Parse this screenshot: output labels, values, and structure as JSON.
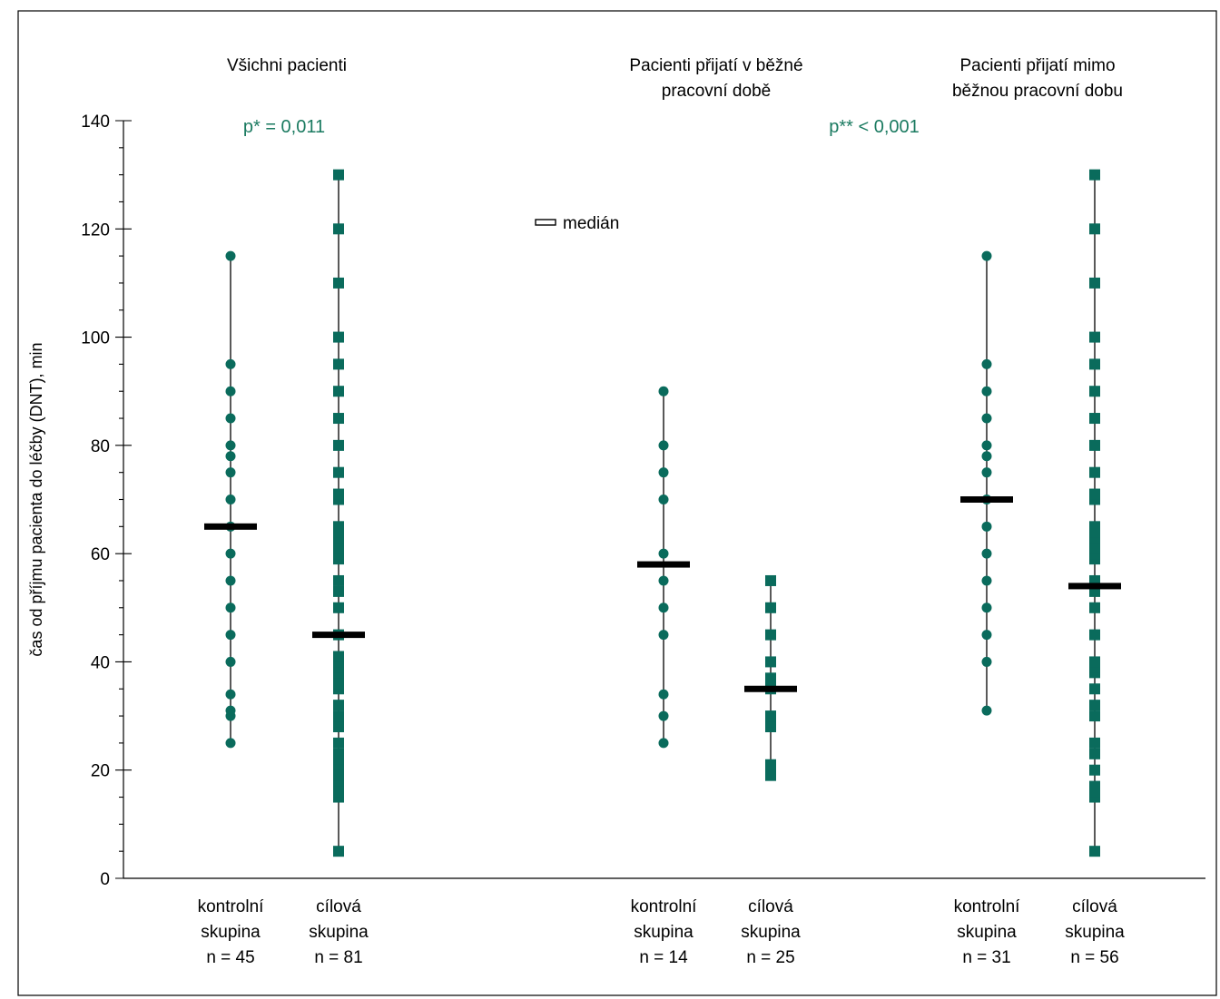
{
  "chart_data": {
    "type": "scatter",
    "title": "",
    "ylabel": "čas od příjmu pacienta do léčby (DNT), min",
    "ylim": [
      0,
      140
    ],
    "yticks": [
      0,
      20,
      40,
      60,
      80,
      100,
      120,
      140
    ],
    "legend": {
      "label": "medián",
      "placement": "top-center"
    },
    "colors": {
      "marker": "#0a6b5c",
      "median": "#000000",
      "annotation": "#1a7a60",
      "axis": "#000000"
    },
    "panels": [
      {
        "title_lines": [
          "Všichni pacienti"
        ]
      },
      {
        "title_lines": [
          "Pacienti přijatí v běžné",
          "pracovní době"
        ]
      },
      {
        "title_lines": [
          "Pacienti přijatí mimo",
          "běžnou pracovní dobu"
        ]
      }
    ],
    "annotations": [
      {
        "text": "p* = 0,011",
        "panel": 0
      },
      {
        "text": "p** < 0,001",
        "panel": 1
      }
    ],
    "series": [
      {
        "panel": 0,
        "marker": "circle",
        "labels": [
          "kontrolní",
          "skupina",
          "n = 45"
        ],
        "median": 65,
        "values": [
          25,
          30,
          31,
          34,
          40,
          45,
          50,
          55,
          60,
          65,
          70,
          75,
          78,
          80,
          85,
          90,
          95,
          115
        ]
      },
      {
        "panel": 0,
        "marker": "square",
        "labels": [
          "cílová",
          "skupina",
          "n = 81"
        ],
        "median": 45,
        "values": [
          5,
          15,
          16,
          17,
          18,
          19,
          20,
          21,
          22,
          23,
          25,
          28,
          29,
          30,
          32,
          35,
          36,
          37,
          38,
          39,
          40,
          41,
          45,
          50,
          53,
          55,
          59,
          60,
          61,
          62,
          63,
          64,
          65,
          70,
          71,
          75,
          80,
          85,
          90,
          95,
          100,
          110,
          120,
          130
        ]
      },
      {
        "panel": 1,
        "marker": "circle",
        "labels": [
          "kontrolní",
          "skupina",
          "n = 14"
        ],
        "median": 58,
        "values": [
          25,
          30,
          34,
          45,
          50,
          55,
          60,
          70,
          75,
          80,
          90
        ]
      },
      {
        "panel": 1,
        "marker": "square",
        "labels": [
          "cílová",
          "skupina",
          "n = 25"
        ],
        "median": 35,
        "values": [
          19,
          20,
          21,
          28,
          29,
          30,
          35,
          36,
          37,
          40,
          45,
          50,
          55
        ]
      },
      {
        "panel": 2,
        "marker": "circle",
        "labels": [
          "kontrolní",
          "skupina",
          "n = 31"
        ],
        "median": 70,
        "values": [
          31,
          40,
          45,
          50,
          55,
          60,
          65,
          70,
          75,
          78,
          80,
          85,
          90,
          95,
          115
        ]
      },
      {
        "panel": 2,
        "marker": "square",
        "labels": [
          "cílová",
          "skupina",
          "n = 56"
        ],
        "median": 54,
        "values": [
          5,
          15,
          16,
          17,
          20,
          23,
          25,
          30,
          32,
          35,
          38,
          39,
          40,
          45,
          50,
          53,
          55,
          59,
          60,
          61,
          62,
          63,
          64,
          65,
          70,
          71,
          75,
          80,
          85,
          90,
          95,
          100,
          110,
          120,
          130
        ]
      }
    ]
  }
}
